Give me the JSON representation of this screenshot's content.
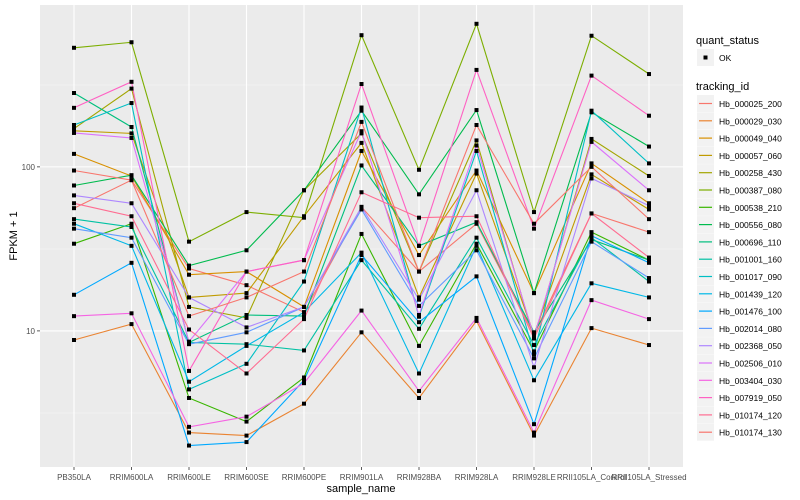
{
  "chart_data": {
    "type": "line",
    "title": "",
    "xlabel": "sample_name",
    "ylabel": "FPKM + 1",
    "y_scale": "log10",
    "ylim": [
      1.48,
      970
    ],
    "y_major_ticks": [
      10,
      100
    ],
    "y_tick_labels": [
      "10",
      "100"
    ],
    "y_minor_gridlines": [
      3.16,
      31.6,
      316
    ],
    "grid": true,
    "legend_position": "right",
    "categories": [
      "PB350LA",
      "RRIM600LA",
      "RRIM600LE",
      "RRIM600SE",
      "RRIM600PE",
      "RRIM901LA",
      "RRIM928BA",
      "RRIM928LA",
      "RRIM928LE",
      "RRII105LA_Control",
      "RRII105LA_Stressed"
    ],
    "shape_legend": {
      "title": "quant_status",
      "entries": [
        {
          "label": "OK",
          "marker": "point"
        }
      ]
    },
    "color_legend_title": "tracking_id",
    "series": [
      {
        "name": "Hb_000025_200",
        "color": "#F8766D",
        "values": [
          56,
          83,
          24,
          19,
          13,
          57,
          23,
          45,
          9.5,
          52,
          40
        ]
      },
      {
        "name": "Hb_000029_030",
        "color": "#EA8331",
        "values": [
          8.8,
          11,
          2.4,
          2.3,
          3.6,
          9.8,
          3.9,
          11.5,
          2.3,
          10.4,
          8.2
        ]
      },
      {
        "name": "Hb_000049_040",
        "color": "#D89000",
        "values": [
          120,
          88,
          22,
          23,
          14,
          125,
          29,
          95,
          17,
          105,
          60
        ]
      },
      {
        "name": "Hb_000057_060",
        "color": "#C09B00",
        "values": [
          166,
          160,
          16,
          17,
          50,
          140,
          16,
          91,
          9.5,
          90,
          55
        ]
      },
      {
        "name": "Hb_000258_430",
        "color": "#A3A500",
        "values": [
          171,
          300,
          14,
          12,
          72,
          160,
          23,
          145,
          9.0,
          148,
          88
        ]
      },
      {
        "name": "Hb_000387_080",
        "color": "#7CAE00",
        "values": [
          532,
          575,
          35,
          53,
          49,
          635,
          96,
          745,
          53,
          630,
          368
        ]
      },
      {
        "name": "Hb_000538_210",
        "color": "#39B600",
        "values": [
          34,
          45,
          3.9,
          2.8,
          5.2,
          39,
          8.1,
          34,
          7.5,
          40,
          27
        ]
      },
      {
        "name": "Hb_000556_080",
        "color": "#00BB4E",
        "values": [
          77,
          89,
          25,
          31,
          72,
          220,
          68,
          222,
          17,
          215,
          133
        ]
      },
      {
        "name": "Hb_000696_110",
        "color": "#00BF7D",
        "values": [
          282,
          175,
          8.5,
          12.5,
          12.3,
          102,
          33,
          46,
          9.8,
          36,
          27
        ]
      },
      {
        "name": "Hb_001001_160",
        "color": "#00C1A3",
        "values": [
          48,
          43,
          8.5,
          8.3,
          7.6,
          27,
          10.3,
          37,
          8.2,
          37,
          20
        ]
      },
      {
        "name": "Hb_001017_090",
        "color": "#00BFC4",
        "values": [
          180,
          245,
          4.4,
          6.3,
          20,
          230,
          12.2,
          125,
          7.2,
          220,
          105
        ]
      },
      {
        "name": "Hb_001439_120",
        "color": "#00B8E7",
        "values": [
          45,
          33,
          4.9,
          8.1,
          13,
          30,
          5.5,
          33,
          5.0,
          19.5,
          16
        ]
      },
      {
        "name": "Hb_001476_100",
        "color": "#00A9FF",
        "values": [
          16.6,
          26,
          2.0,
          2.1,
          5.0,
          29,
          11.3,
          21.5,
          2.7,
          38,
          26
        ]
      },
      {
        "name": "Hb_002014_080",
        "color": "#619CFF",
        "values": [
          42,
          37,
          8.3,
          9.8,
          14,
          55,
          14.2,
          31,
          6.8,
          35,
          21
        ]
      },
      {
        "name": "Hb_002368_050",
        "color": "#AE87FF",
        "values": [
          67,
          60,
          16,
          10.5,
          14,
          57,
          15.5,
          72,
          6.0,
          85,
          58
        ]
      },
      {
        "name": "Hb_002506_010",
        "color": "#DB72FB",
        "values": [
          161,
          150,
          8.6,
          23,
          27,
          165,
          12.5,
          135,
          9.2,
          142,
          72
        ]
      },
      {
        "name": "Hb_003404_030",
        "color": "#F564E3",
        "values": [
          12.3,
          12.8,
          2.6,
          3.0,
          4.8,
          13.3,
          4.3,
          12.0,
          2.4,
          15.4,
          11.8
        ]
      },
      {
        "name": "Hb_007919_050",
        "color": "#FF61C3",
        "values": [
          229,
          330,
          5.7,
          23,
          27,
          320,
          33,
          390,
          42,
          360,
          205
        ]
      },
      {
        "name": "Hb_010174_120",
        "color": "#FF6C91",
        "values": [
          60,
          50,
          10.2,
          5.5,
          11.8,
          70,
          49,
          50,
          9.0,
          52,
          28
        ]
      },
      {
        "name": "Hb_010174_130",
        "color": "#F8766D",
        "values": [
          95,
          83,
          12.3,
          16,
          23,
          188,
          23,
          180,
          45,
          100,
          48
        ]
      }
    ]
  }
}
